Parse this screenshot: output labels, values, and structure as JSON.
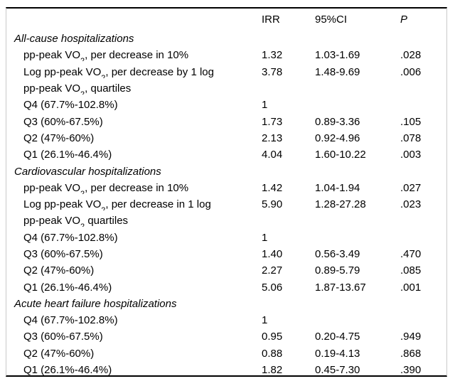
{
  "table": {
    "header": {
      "label": "",
      "irr": "IRR",
      "ci": "95%CI",
      "p": "P"
    },
    "footnote_marker": "*",
    "rows": [
      {
        "style": "section",
        "label_pre": "All-cause hospitalizations",
        "label_sub": "",
        "label_post": "",
        "label_sup": "*",
        "irr": "",
        "ci": "",
        "p": ""
      },
      {
        "style": "item",
        "label_pre": "pp-peak VO",
        "label_sub": "2",
        "label_post": ", per decrease in 10%",
        "label_sup": "",
        "irr": "1.32",
        "ci": "1.03-1.69",
        "p": ".028"
      },
      {
        "style": "item",
        "label_pre": "Log pp-peak VO",
        "label_sub": "2",
        "label_post": ", per decrease by 1 log",
        "label_sup": "",
        "irr": "3.78",
        "ci": "1.48-9.69",
        "p": ".006"
      },
      {
        "style": "item",
        "label_pre": "pp-peak VO",
        "label_sub": "2",
        "label_post": ", quartiles",
        "label_sup": "",
        "irr": "",
        "ci": "",
        "p": ""
      },
      {
        "style": "item",
        "label_pre": "Q4 (67.7%-102.8%)",
        "label_sub": "",
        "label_post": "",
        "label_sup": "",
        "irr": "1",
        "ci": "",
        "p": ""
      },
      {
        "style": "item",
        "label_pre": "Q3 (60%-67.5%)",
        "label_sub": "",
        "label_post": "",
        "label_sup": "",
        "irr": "1.73",
        "ci": "0.89-3.36",
        "p": ".105"
      },
      {
        "style": "item",
        "label_pre": "Q2 (47%-60%)",
        "label_sub": "",
        "label_post": "",
        "label_sup": "",
        "irr": "2.13",
        "ci": "0.92-4.96",
        "p": ".078"
      },
      {
        "style": "item",
        "label_pre": "Q1 (26.1%-46.4%)",
        "label_sub": "",
        "label_post": "",
        "label_sup": "",
        "irr": "4.04",
        "ci": "1.60-10.22",
        "p": ".003"
      },
      {
        "style": "section",
        "label_pre": "Cardiovascular hospitalizations",
        "label_sub": "",
        "label_post": "",
        "label_sup": "*",
        "irr": "",
        "ci": "",
        "p": ""
      },
      {
        "style": "item",
        "label_pre": "pp-peak VO",
        "label_sub": "2",
        "label_post": ", per decrease in 10%",
        "label_sup": "",
        "irr": "1.42",
        "ci": "1.04-1.94",
        "p": ".027"
      },
      {
        "style": "item",
        "label_pre": "Log pp-peak VO",
        "label_sub": "2",
        "label_post": ", per decrease in 1 log",
        "label_sup": "",
        "irr": "5.90",
        "ci": "1.28-27.28",
        "p": ".023"
      },
      {
        "style": "item",
        "label_pre": "pp-peak VO",
        "label_sub": "2",
        "label_post": " quartiles",
        "label_sup": "",
        "irr": "",
        "ci": "",
        "p": ""
      },
      {
        "style": "item",
        "label_pre": "Q4 (67.7%-102.8%)",
        "label_sub": "",
        "label_post": "",
        "label_sup": "",
        "irr": "1",
        "ci": "",
        "p": ""
      },
      {
        "style": "item",
        "label_pre": "Q3 (60%-67.5%)",
        "label_sub": "",
        "label_post": "",
        "label_sup": "",
        "irr": "1.40",
        "ci": "0.56-3.49",
        "p": ".470"
      },
      {
        "style": "item",
        "label_pre": "Q2 (47%-60%)",
        "label_sub": "",
        "label_post": "",
        "label_sup": "",
        "irr": "2.27",
        "ci": "0.89-5.79",
        "p": ".085"
      },
      {
        "style": "item",
        "label_pre": "Q1 (26.1%-46.4%)",
        "label_sub": "",
        "label_post": "",
        "label_sup": "",
        "irr": "5.06",
        "ci": "1.87-13.67",
        "p": ".001"
      },
      {
        "style": "section",
        "label_pre": "Acute heart failure hospitalizations",
        "label_sub": "",
        "label_post": "",
        "label_sup": "*",
        "irr": "",
        "ci": "",
        "p": ""
      },
      {
        "style": "item",
        "label_pre": "Q4 (67.7%-102.8%)",
        "label_sub": "",
        "label_post": "",
        "label_sup": "",
        "irr": "1",
        "ci": "",
        "p": ""
      },
      {
        "style": "item",
        "label_pre": "Q3 (60%-67.5%)",
        "label_sub": "",
        "label_post": "",
        "label_sup": "",
        "irr": "0.95",
        "ci": "0.20-4.75",
        "p": ".949"
      },
      {
        "style": "item",
        "label_pre": "Q2 (47%-60%)",
        "label_sub": "",
        "label_post": "",
        "label_sup": "",
        "irr": "0.88",
        "ci": "0.19-4.13",
        "p": ".868"
      },
      {
        "style": "item",
        "label_pre": "Q1 (26.1%-46.4%)",
        "label_sub": "",
        "label_post": "",
        "label_sup": "",
        "irr": "1.82",
        "ci": "0.45-7.30",
        "p": ".390"
      }
    ]
  }
}
